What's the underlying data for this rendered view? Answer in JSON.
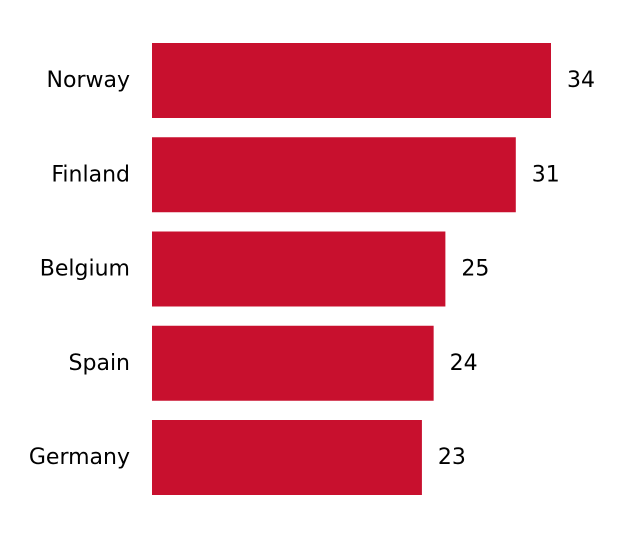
{
  "chart_data": {
    "type": "bar",
    "orientation": "horizontal",
    "categories": [
      "Norway",
      "Finland",
      "Belgium",
      "Spain",
      "Germany"
    ],
    "values": [
      34,
      31,
      25,
      24,
      23
    ],
    "title": "",
    "xlabel": "",
    "ylabel": "",
    "xlim": [
      0,
      34
    ],
    "grid": false,
    "legend": "none",
    "data_labels": true,
    "bar_color": "#c8102e"
  }
}
